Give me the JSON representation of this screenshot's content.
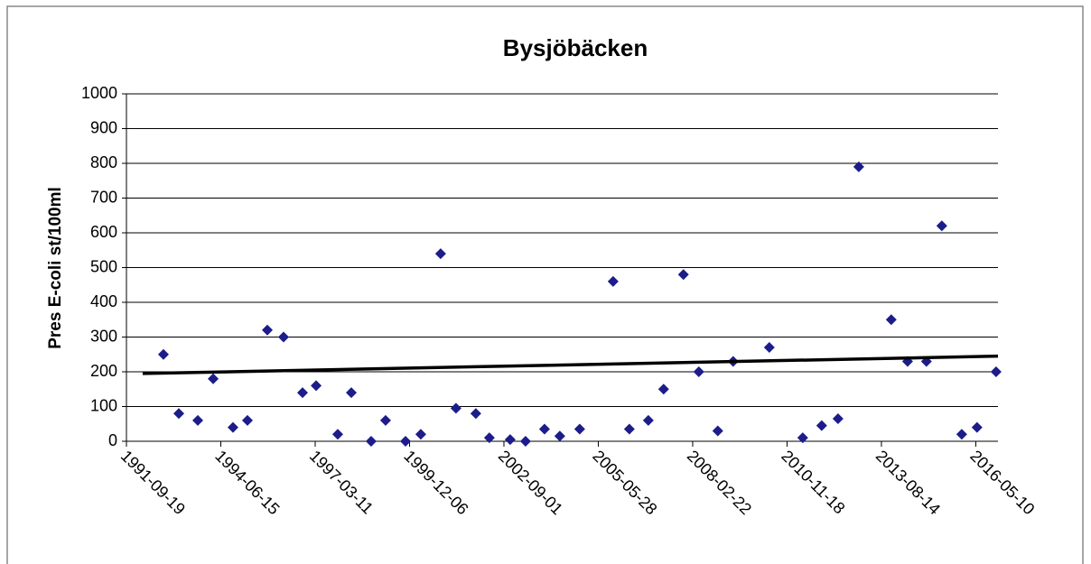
{
  "chart_data": {
    "type": "scatter",
    "title": "Bysjöbäcken",
    "y_label": "Pres E-coli st/100ml",
    "x": [
      "1992-10-15",
      "1993-03-27",
      "1993-10-14",
      "1994-03-26",
      "1994-10-22",
      "1995-03-24",
      "1995-10-21",
      "1996-04-10",
      "1996-10-28",
      "1997-03-21",
      "1997-11-05",
      "1998-03-29",
      "1998-10-25",
      "1999-03-27",
      "1999-10-24",
      "2000-04-03",
      "2000-10-30",
      "2001-04-11",
      "2001-11-07",
      "2002-03-31",
      "2002-11-06",
      "2003-04-18",
      "2003-11-05",
      "2004-04-15",
      "2004-11-12",
      "2005-11-01",
      "2006-04-22",
      "2006-11-09",
      "2007-04-20",
      "2007-11-16",
      "2008-04-27",
      "2008-11-14",
      "2009-04-26",
      "2010-05-14",
      "2011-05-03",
      "2011-11-20",
      "2012-05-11",
      "2012-12-17",
      "2013-11-26",
      "2014-05-18",
      "2014-12-04",
      "2015-05-16",
      "2015-12-13",
      "2016-05-23",
      "2016-12-11"
    ],
    "values": [
      250,
      80,
      60,
      180,
      40,
      60,
      320,
      300,
      140,
      160,
      20,
      140,
      0,
      60,
      0,
      20,
      540,
      95,
      80,
      10,
      5,
      0,
      35,
      15,
      35,
      460,
      35,
      60,
      150,
      480,
      200,
      30,
      230,
      270,
      10,
      45,
      65,
      790,
      350,
      230,
      230,
      620,
      20,
      40,
      200
    ],
    "color": "#1c1c8a",
    "trend": {
      "x": [
        "1992-03-09",
        "2016-12-31"
      ],
      "values": [
        195,
        245
      ],
      "color": "#000000"
    },
    "xlim": [
      "1991-09-19",
      "2016-12-31"
    ],
    "xticks": [
      "1991-09-19",
      "1994-06-15",
      "1997-03-11",
      "1999-12-06",
      "2002-09-01",
      "2005-05-28",
      "2008-02-22",
      "2010-11-18",
      "2013-08-14",
      "2016-05-10"
    ],
    "ylim": [
      0,
      1000
    ],
    "yticks": [
      0,
      100,
      200,
      300,
      400,
      500,
      600,
      700,
      800,
      900,
      1000
    ],
    "grid": true
  }
}
